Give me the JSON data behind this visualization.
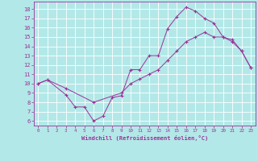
{
  "background_color": "#b3e8e8",
  "grid_color": "#ffffff",
  "line_color": "#993399",
  "xlabel": "Windchill (Refroidissement éolien,°C)",
  "xlim": [
    -0.5,
    23.5
  ],
  "ylim": [
    5.5,
    18.8
  ],
  "xticks": [
    0,
    1,
    2,
    3,
    4,
    5,
    6,
    7,
    8,
    9,
    10,
    11,
    12,
    13,
    14,
    15,
    16,
    17,
    18,
    19,
    20,
    21,
    22,
    23
  ],
  "yticks": [
    6,
    7,
    8,
    9,
    10,
    11,
    12,
    13,
    14,
    15,
    16,
    17,
    18
  ],
  "line1_x": [
    0,
    1,
    3,
    4,
    5,
    6,
    7,
    8,
    9,
    10,
    11,
    12,
    13,
    14,
    15,
    16,
    17,
    18,
    19,
    20,
    21,
    22,
    23
  ],
  "line1_y": [
    10,
    10.4,
    8.8,
    7.5,
    7.5,
    6.0,
    6.5,
    8.5,
    8.7,
    11.5,
    11.5,
    13.0,
    13.0,
    15.9,
    17.2,
    18.2,
    17.8,
    17.0,
    16.5,
    15.0,
    14.7,
    13.5,
    11.7
  ],
  "line2_x": [
    0,
    1,
    3,
    6,
    9,
    10,
    11,
    12,
    13,
    14,
    15,
    16,
    17,
    18,
    19,
    20,
    21,
    22,
    23
  ],
  "line2_y": [
    10,
    10.4,
    9.5,
    8.0,
    9.0,
    10.0,
    10.5,
    11.0,
    11.5,
    12.5,
    13.5,
    14.5,
    15.0,
    15.5,
    15.0,
    15.0,
    14.5,
    13.5,
    11.7
  ]
}
